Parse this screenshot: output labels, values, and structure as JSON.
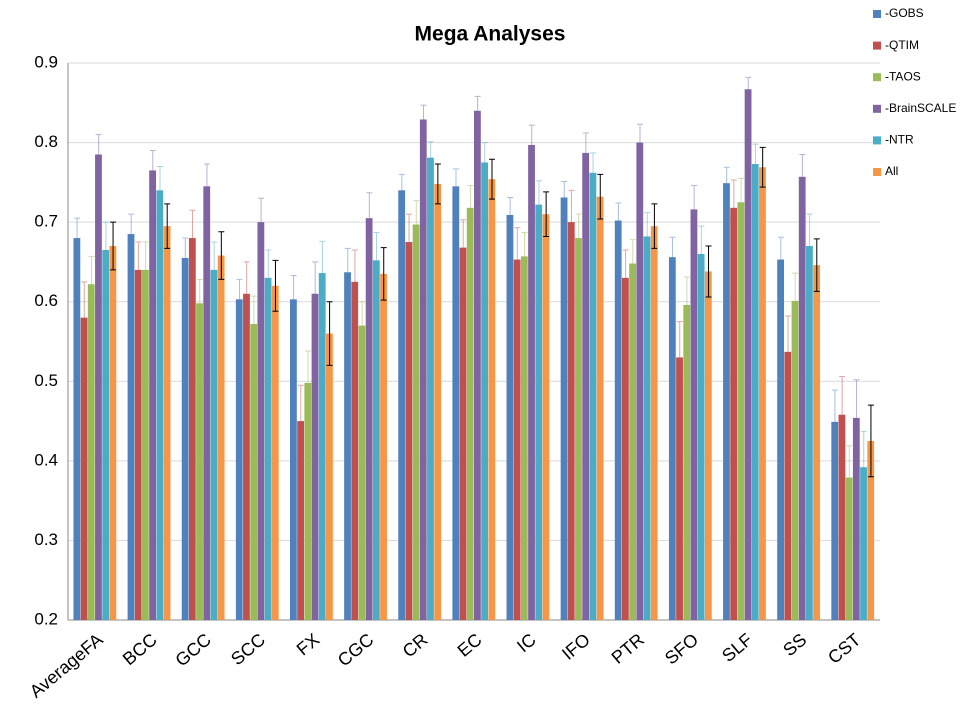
{
  "chart_data": {
    "type": "bar",
    "title": "Mega Analyses",
    "categories": [
      "AverageFA",
      "BCC",
      "GCC",
      "SCC",
      "FX",
      "CGC",
      "CR",
      "EC",
      "IC",
      "IFO",
      "PTR",
      "SFO",
      "SLF",
      "SS",
      "CST"
    ],
    "series": [
      {
        "name": "-GOBS",
        "color": "#4f81bd",
        "values": [
          0.68,
          0.685,
          0.655,
          0.603,
          0.603,
          0.637,
          0.74,
          0.745,
          0.709,
          0.731,
          0.702,
          0.656,
          0.749,
          0.653,
          0.449
        ],
        "errors": [
          0.025,
          0.025,
          0.025,
          0.025,
          0.03,
          0.03,
          0.02,
          0.022,
          0.022,
          0.02,
          0.022,
          0.025,
          0.02,
          0.028,
          0.04
        ]
      },
      {
        "name": "-QTIM",
        "color": "#c0504d",
        "values": [
          0.58,
          0.64,
          0.68,
          0.61,
          0.45,
          0.625,
          0.675,
          0.668,
          0.653,
          0.7,
          0.63,
          0.53,
          0.718,
          0.537,
          0.458
        ],
        "errors": [
          0.045,
          0.035,
          0.035,
          0.04,
          0.045,
          0.04,
          0.035,
          0.035,
          0.04,
          0.04,
          0.035,
          0.045,
          0.035,
          0.045,
          0.048
        ]
      },
      {
        "name": "-TAOS",
        "color": "#9bbb59",
        "values": [
          0.622,
          0.64,
          0.598,
          0.572,
          0.498,
          0.57,
          0.697,
          0.718,
          0.657,
          0.68,
          0.648,
          0.596,
          0.725,
          0.601,
          0.379
        ],
        "errors": [
          0.035,
          0.035,
          0.03,
          0.035,
          0.04,
          0.03,
          0.03,
          0.028,
          0.03,
          0.03,
          0.03,
          0.035,
          0.03,
          0.035,
          0.04
        ]
      },
      {
        "name": "-BrainSCALE",
        "color": "#8064a2",
        "values": [
          0.785,
          0.765,
          0.745,
          0.7,
          0.61,
          0.705,
          0.829,
          0.84,
          0.797,
          0.787,
          0.8,
          0.716,
          0.867,
          0.757,
          0.454
        ],
        "errors": [
          0.025,
          0.025,
          0.028,
          0.03,
          0.04,
          0.032,
          0.018,
          0.018,
          0.025,
          0.025,
          0.023,
          0.03,
          0.015,
          0.028,
          0.048
        ]
      },
      {
        "name": "-NTR",
        "color": "#4bacc6",
        "values": [
          0.665,
          0.74,
          0.64,
          0.63,
          0.636,
          0.652,
          0.781,
          0.775,
          0.722,
          0.762,
          0.682,
          0.66,
          0.773,
          0.67,
          0.392
        ],
        "errors": [
          0.035,
          0.03,
          0.035,
          0.035,
          0.04,
          0.035,
          0.02,
          0.025,
          0.03,
          0.025,
          0.03,
          0.035,
          0.025,
          0.04,
          0.045
        ]
      },
      {
        "name": "All",
        "color": "#f79646",
        "values": [
          0.67,
          0.695,
          0.658,
          0.62,
          0.56,
          0.635,
          0.748,
          0.754,
          0.71,
          0.732,
          0.695,
          0.638,
          0.769,
          0.646,
          0.425
        ],
        "errors": [
          0.03,
          0.028,
          0.03,
          0.032,
          0.04,
          0.033,
          0.025,
          0.025,
          0.028,
          0.028,
          0.028,
          0.032,
          0.025,
          0.033,
          0.045
        ]
      }
    ],
    "ylim": [
      0.2,
      0.9
    ],
    "yticks": [
      0.2,
      0.3,
      0.4,
      0.5,
      0.6,
      0.7,
      0.8,
      0.9
    ],
    "grid": true,
    "legend": "right"
  }
}
